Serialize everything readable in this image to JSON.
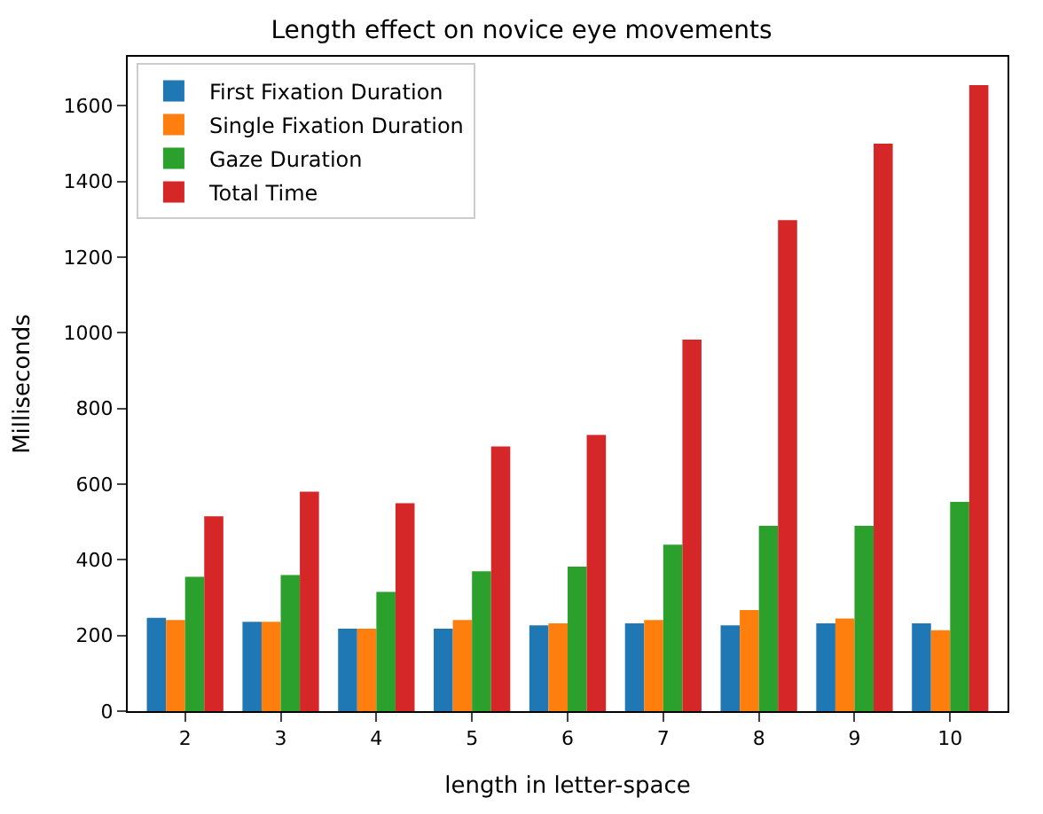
{
  "chart_data": {
    "type": "bar",
    "title": "Length effect on novice eye movements",
    "xlabel": "length in letter-space",
    "ylabel": "Milliseconds",
    "categories": [
      "2",
      "3",
      "4",
      "5",
      "6",
      "7",
      "8",
      "9",
      "10"
    ],
    "series": [
      {
        "name": "First Fixation Duration",
        "color": "#1f77b4",
        "values": [
          247,
          236,
          218,
          218,
          227,
          232,
          227,
          232,
          232
        ]
      },
      {
        "name": "Single Fixation Duration",
        "color": "#ff7f0e",
        "values": [
          241,
          236,
          218,
          241,
          232,
          241,
          267,
          245,
          214
        ]
      },
      {
        "name": "Gaze Duration",
        "color": "#2ca02c",
        "values": [
          355,
          360,
          315,
          370,
          382,
          440,
          490,
          490,
          553
        ]
      },
      {
        "name": "Total Time",
        "color": "#d62728",
        "values": [
          515,
          580,
          550,
          700,
          730,
          982,
          1298,
          1500,
          1655
        ]
      }
    ],
    "ylim": [
      0,
      1730
    ],
    "yticks": [
      0,
      200,
      400,
      600,
      800,
      1000,
      1200,
      1400,
      1600
    ],
    "legend": "top left"
  }
}
